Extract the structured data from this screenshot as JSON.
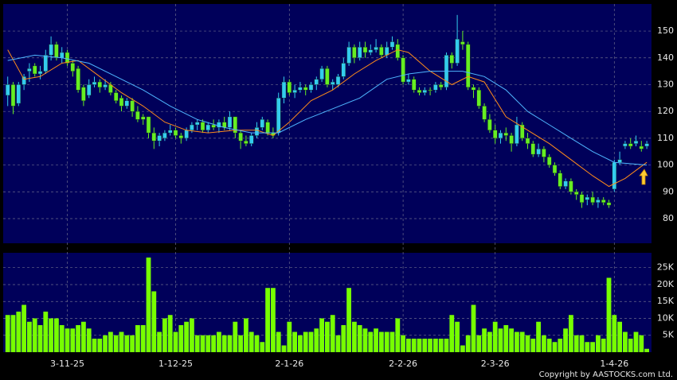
{
  "chart_data": [
    {
      "type": "candlestick",
      "up_color": "#33ccee",
      "down_color": "#66ee22",
      "candles": [
        [
          126,
          133,
          122,
          130
        ],
        [
          130,
          131,
          119,
          122
        ],
        [
          123,
          131,
          122,
          130
        ],
        [
          130,
          134,
          128,
          133
        ],
        [
          135,
          138,
          131,
          136
        ],
        [
          137,
          138,
          133,
          134
        ],
        [
          134,
          137,
          132,
          135
        ],
        [
          135,
          143,
          134,
          141
        ],
        [
          141,
          148,
          139,
          145
        ],
        [
          145,
          146,
          139,
          140
        ],
        [
          140,
          144,
          138,
          142
        ],
        [
          142,
          143,
          137,
          138
        ],
        [
          138,
          139,
          133,
          135
        ],
        [
          136,
          137,
          127,
          128
        ],
        [
          129,
          130,
          122,
          124
        ],
        [
          126,
          132,
          125,
          130
        ],
        [
          130,
          133,
          129,
          131
        ],
        [
          131,
          132,
          127,
          129
        ],
        [
          129,
          132,
          128,
          130
        ],
        [
          130,
          131,
          126,
          127
        ],
        [
          127,
          128,
          123,
          124
        ],
        [
          125,
          126,
          120,
          122
        ],
        [
          122,
          125,
          121,
          124
        ],
        [
          124,
          125,
          118,
          120
        ],
        [
          120,
          122,
          116,
          117
        ],
        [
          118,
          119,
          115,
          117
        ],
        [
          118,
          118,
          110,
          112
        ],
        [
          112,
          114,
          106,
          109
        ],
        [
          109,
          112,
          107,
          111
        ],
        [
          110,
          113,
          109,
          112
        ],
        [
          112,
          115,
          111,
          113
        ],
        [
          113,
          114,
          110,
          111
        ],
        [
          111,
          112,
          108,
          110
        ],
        [
          110,
          114,
          109,
          113
        ],
        [
          113,
          116,
          112,
          115
        ],
        [
          115,
          117,
          113,
          116
        ],
        [
          116,
          117,
          112,
          113
        ],
        [
          113,
          116,
          112,
          115
        ],
        [
          115,
          117,
          113,
          114
        ],
        [
          114,
          117,
          112,
          116
        ],
        [
          116,
          118,
          113,
          114
        ],
        [
          114,
          120,
          113,
          118
        ],
        [
          118,
          118,
          110,
          112
        ],
        [
          112,
          113,
          106,
          109
        ],
        [
          109,
          111,
          107,
          108
        ],
        [
          108,
          112,
          107,
          111
        ],
        [
          111,
          116,
          110,
          114
        ],
        [
          114,
          118,
          113,
          117
        ],
        [
          116,
          117,
          111,
          112
        ],
        [
          112,
          114,
          110,
          111
        ],
        [
          112,
          127,
          111,
          125
        ],
        [
          125,
          133,
          123,
          131
        ],
        [
          131,
          132,
          126,
          127
        ],
        [
          127,
          130,
          125,
          128
        ],
        [
          128,
          131,
          127,
          129
        ],
        [
          129,
          130,
          126,
          128
        ],
        [
          128,
          131,
          127,
          130
        ],
        [
          130,
          133,
          128,
          132
        ],
        [
          132,
          137,
          131,
          136
        ],
        [
          136,
          137,
          129,
          130
        ],
        [
          130,
          132,
          128,
          131
        ],
        [
          130,
          134,
          129,
          133
        ],
        [
          133,
          140,
          132,
          138
        ],
        [
          138,
          146,
          137,
          144
        ],
        [
          144,
          145,
          138,
          140
        ],
        [
          140,
          146,
          139,
          144
        ],
        [
          144,
          146,
          140,
          142
        ],
        [
          142,
          145,
          141,
          143
        ],
        [
          143,
          147,
          142,
          144
        ],
        [
          144,
          145,
          140,
          141
        ],
        [
          141,
          146,
          140,
          144
        ],
        [
          144,
          148,
          143,
          146
        ],
        [
          145,
          147,
          139,
          140
        ],
        [
          140,
          141,
          130,
          131
        ],
        [
          131,
          134,
          130,
          132
        ],
        [
          132,
          133,
          127,
          128
        ],
        [
          128,
          129,
          126,
          127
        ],
        [
          127,
          129,
          126,
          128
        ],
        [
          128,
          129,
          126,
          128
        ],
        [
          128,
          131,
          127,
          130
        ],
        [
          130,
          131,
          128,
          129
        ],
        [
          129,
          142,
          128,
          141
        ],
        [
          141,
          142,
          136,
          138
        ],
        [
          138,
          156,
          137,
          147
        ],
        [
          146,
          150,
          143,
          145
        ],
        [
          145,
          146,
          128,
          129
        ],
        [
          129,
          130,
          125,
          128
        ],
        [
          128,
          129,
          121,
          122
        ],
        [
          122,
          123,
          116,
          117
        ],
        [
          117,
          119,
          112,
          113
        ],
        [
          113,
          115,
          108,
          110
        ],
        [
          110,
          113,
          108,
          112
        ],
        [
          112,
          114,
          109,
          111
        ],
        [
          111,
          112,
          105,
          108
        ],
        [
          108,
          118,
          107,
          115
        ],
        [
          115,
          116,
          109,
          110
        ],
        [
          110,
          112,
          106,
          108
        ],
        [
          108,
          109,
          103,
          104
        ],
        [
          104,
          108,
          103,
          106
        ],
        [
          106,
          107,
          101,
          103
        ],
        [
          103,
          104,
          99,
          100
        ],
        [
          100,
          101,
          96,
          97
        ],
        [
          97,
          98,
          91,
          92
        ],
        [
          92,
          95,
          91,
          94
        ],
        [
          94,
          95,
          89,
          90
        ],
        [
          90,
          91,
          87,
          89
        ],
        [
          89,
          90,
          84,
          86
        ],
        [
          87,
          89,
          85,
          88
        ],
        [
          88,
          90,
          85,
          86
        ],
        [
          86,
          88,
          84,
          87
        ],
        [
          87,
          88,
          85,
          86
        ],
        [
          86,
          87,
          84,
          85
        ],
        [
          91,
          102,
          90,
          101
        ],
        [
          101,
          105,
          100,
          102
        ],
        [
          107,
          109,
          106,
          108
        ],
        [
          108,
          110,
          106,
          107
        ],
        [
          108,
          111,
          107,
          109
        ],
        [
          107,
          109,
          105,
          106
        ],
        [
          107,
          109,
          106,
          108
        ]
      ],
      "lines": [
        {
          "color": "#ff8c1a",
          "x": [
            0,
            3,
            6,
            10,
            13,
            17,
            21,
            25,
            29,
            33,
            37,
            42,
            46,
            49,
            52,
            56,
            60,
            64,
            68,
            72,
            74,
            78,
            82,
            85,
            88,
            92,
            96,
            100,
            104,
            108,
            111,
            114,
            118
          ],
          "values": [
            143,
            132,
            133,
            138,
            139,
            133,
            127,
            122,
            116,
            113,
            112,
            113,
            113,
            111,
            116,
            124,
            128,
            134,
            139,
            143,
            142,
            135,
            130,
            133,
            131,
            118,
            113,
            108,
            102,
            96,
            92,
            95,
            101
          ]
        },
        {
          "color": "#4fb6ff",
          "x": [
            0,
            5,
            10,
            15,
            20,
            25,
            30,
            35,
            40,
            45,
            50,
            55,
            60,
            65,
            70,
            74,
            78,
            84,
            88,
            92,
            96,
            100,
            104,
            108,
            112,
            118
          ],
          "values": [
            139,
            141,
            140,
            138,
            133,
            128,
            122,
            117,
            114,
            112,
            112,
            117,
            121,
            125,
            132,
            134,
            135,
            135,
            133,
            128,
            120,
            115,
            110,
            105,
            101,
            100
          ]
        }
      ],
      "ylim": [
        70.8,
        160.1
      ],
      "yticks": [
        80,
        90,
        100,
        110,
        120,
        130,
        140,
        150
      ],
      "grid": true
    },
    {
      "type": "bar",
      "color": "#77ff00",
      "categories": [
        null,
        null,
        null,
        null,
        null,
        null,
        null,
        null,
        null,
        null,
        null,
        "3-11-25",
        null,
        null,
        null,
        null,
        null,
        null,
        null,
        null,
        null,
        null,
        null,
        null,
        null,
        null,
        null,
        null,
        null,
        null,
        null,
        "1-12-25",
        null,
        null,
        null,
        null,
        null,
        null,
        null,
        null,
        null,
        null,
        null,
        null,
        null,
        null,
        null,
        null,
        null,
        null,
        null,
        null,
        "2-1-26",
        null,
        null,
        null,
        null,
        null,
        null,
        null,
        null,
        null,
        null,
        null,
        null,
        null,
        null,
        null,
        null,
        null,
        null,
        null,
        null,
        "2-2-26",
        null,
        null,
        null,
        null,
        null,
        null,
        null,
        null,
        null,
        null,
        null,
        null,
        null,
        null,
        null,
        null,
        "2-3-26",
        null,
        null,
        null,
        null,
        null,
        null,
        null,
        null,
        null,
        null,
        null,
        null,
        null,
        null,
        null,
        null,
        null,
        null,
        null,
        null,
        null,
        "1-4-26",
        null,
        null,
        null,
        null,
        null,
        null
      ],
      "values": [
        11,
        11,
        12,
        14,
        9,
        10,
        8,
        12,
        10,
        10,
        8,
        7,
        7,
        8,
        9,
        7,
        4,
        4,
        5,
        6,
        5,
        6,
        5,
        5,
        8,
        8,
        28,
        18,
        6,
        10,
        11,
        6,
        8,
        9,
        10,
        5,
        5,
        5,
        5,
        6,
        5,
        5,
        9,
        5,
        10,
        6,
        5,
        3,
        19,
        19,
        6,
        2,
        9,
        6,
        5,
        6,
        6,
        7,
        10,
        9,
        11,
        5,
        8,
        19,
        9,
        8,
        7,
        6,
        7,
        6,
        6,
        6,
        10,
        5,
        4,
        4,
        4,
        4,
        4,
        4,
        4,
        4,
        11,
        9,
        2,
        5,
        14,
        5,
        7,
        6,
        9,
        7,
        8,
        7,
        6,
        6,
        5,
        4,
        9,
        5,
        4,
        3,
        4,
        7,
        11,
        5,
        5,
        3,
        3,
        5,
        4,
        22,
        11,
        9,
        6,
        4,
        6,
        5,
        1
      ],
      "ylim": [
        0,
        29.4
      ],
      "yticks": [
        {
          "value": 5,
          "label": "5K"
        },
        {
          "value": 10,
          "label": "10K"
        },
        {
          "value": 15,
          "label": "15K"
        },
        {
          "value": 20,
          "label": "20K"
        },
        {
          "value": 25,
          "label": "25K"
        }
      ],
      "grid": true
    },
    {
      "copyright": "Copyright by AASTOCKS.com Ltd."
    }
  ]
}
